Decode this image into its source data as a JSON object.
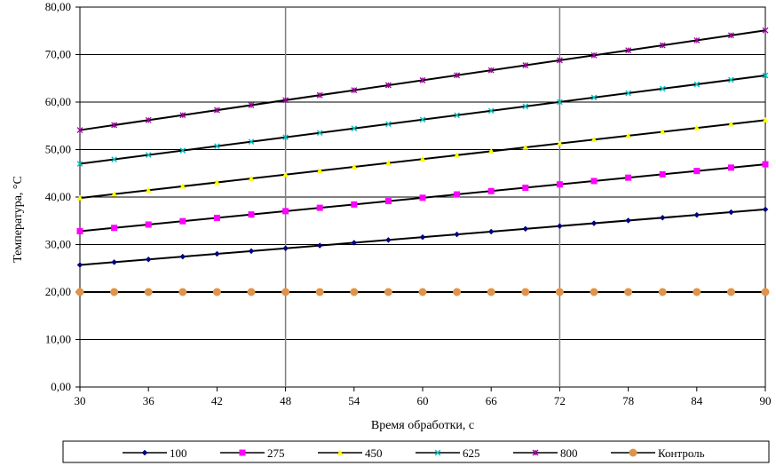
{
  "chart_data": {
    "type": "line",
    "xlabel": "Время обработки, с",
    "ylabel": "Температура, °С",
    "xlim": [
      30,
      90
    ],
    "ylim": [
      0,
      80
    ],
    "x_ticks": [
      30,
      36,
      42,
      48,
      54,
      60,
      66,
      72,
      78,
      84,
      90
    ],
    "y_ticks": [
      0,
      10,
      20,
      30,
      40,
      50,
      60,
      70,
      80
    ],
    "y_tick_labels": [
      "0,00",
      "10,00",
      "20,00",
      "30,00",
      "40,00",
      "50,00",
      "60,00",
      "70,00",
      "80,00"
    ],
    "x_marker_values": [
      30,
      33,
      36,
      39,
      42,
      45,
      48,
      51,
      54,
      57,
      60,
      63,
      66,
      69,
      72,
      75,
      78,
      81,
      84,
      87,
      90
    ],
    "vertical_gridlines": [
      48,
      72
    ],
    "horizontal_gridlines": true,
    "legend_position": "bottom",
    "series": [
      {
        "name": "100",
        "color": "#000080",
        "marker": "diamond",
        "y_start": 25.7,
        "y_end": 37.4
      },
      {
        "name": "275",
        "color": "#FF00FF",
        "marker": "square",
        "y_start": 32.8,
        "y_end": 46.9
      },
      {
        "name": "450",
        "color": "#FFFF00",
        "marker": "triangle",
        "y_start": 39.8,
        "y_end": 56.2
      },
      {
        "name": "625",
        "color": "#00C0C0",
        "marker": "x",
        "y_start": 47.0,
        "y_end": 65.6
      },
      {
        "name": "800",
        "color": "#A000A0",
        "marker": "star",
        "y_start": 54.1,
        "y_end": 75.1
      },
      {
        "name": "Контроль",
        "color": "#E0944A",
        "marker": "circle",
        "y_start": 20.0,
        "y_end": 20.0
      }
    ]
  }
}
